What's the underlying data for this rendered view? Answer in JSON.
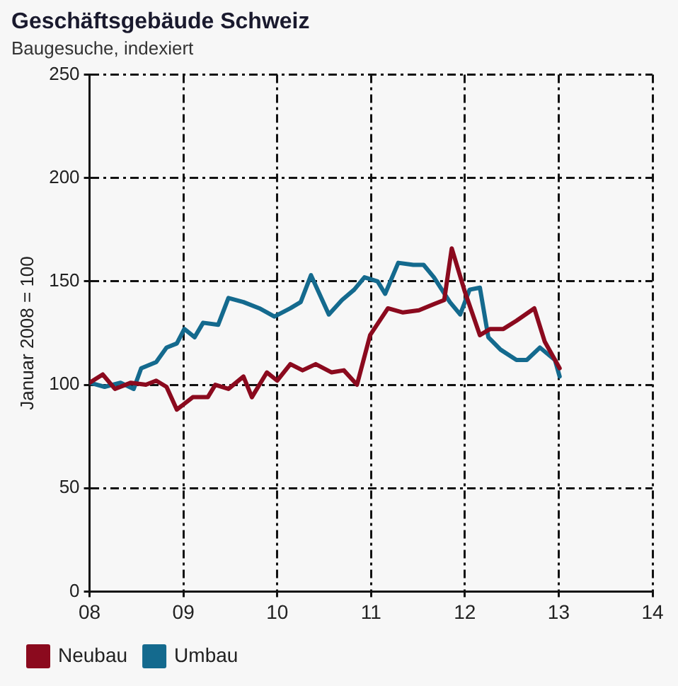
{
  "chart_data": {
    "type": "line",
    "title": "Geschäftsgebäude Schweiz",
    "subtitle": "Baugesuche, indexiert",
    "ylabel": "Januar 2008 = 100",
    "xlim": [
      2008,
      2014
    ],
    "xticks": [
      {
        "value": 2008,
        "label": "08"
      },
      {
        "value": 2009,
        "label": "09"
      },
      {
        "value": 2010,
        "label": "10"
      },
      {
        "value": 2011,
        "label": "11"
      },
      {
        "value": 2012,
        "label": "12"
      },
      {
        "value": 2013,
        "label": "13"
      },
      {
        "value": 2014,
        "label": "14"
      }
    ],
    "ylim": [
      0,
      250
    ],
    "yticks": [
      0,
      50,
      100,
      150,
      200,
      250
    ],
    "grid": true,
    "legend": "bottom left",
    "marker": "none",
    "line_style": "solid",
    "series": [
      {
        "name": "Neubau",
        "color": "#8b0a1e",
        "x": [
          2008.0,
          2008.14,
          2008.27,
          2008.44,
          2008.6,
          2008.71,
          2008.82,
          2008.93,
          2009.1,
          2009.26,
          2009.34,
          2009.48,
          2009.64,
          2009.73,
          2009.89,
          2010.0,
          2010.14,
          2010.27,
          2010.41,
          2010.58,
          2010.71,
          2010.85,
          2010.99,
          2011.18,
          2011.34,
          2011.51,
          2011.67,
          2011.78,
          2011.86,
          2012.0,
          2012.16,
          2012.27,
          2012.41,
          2012.55,
          2012.74,
          2012.85,
          2013.01
        ],
        "values": [
          101,
          105,
          98,
          101,
          100,
          102,
          99,
          88,
          94,
          94,
          100,
          98,
          104,
          94,
          106,
          102,
          110,
          107,
          110,
          106,
          107,
          100,
          124,
          137,
          135,
          136,
          139,
          141,
          166,
          145,
          124,
          127,
          127,
          131,
          137,
          121,
          108
        ]
      },
      {
        "name": "Umbau",
        "color": "#146a8e",
        "x": [
          2008.0,
          2008.16,
          2008.33,
          2008.47,
          2008.55,
          2008.71,
          2008.82,
          2008.93,
          2009.01,
          2009.12,
          2009.21,
          2009.37,
          2009.48,
          2009.64,
          2009.81,
          2009.97,
          2010.14,
          2010.25,
          2010.36,
          2010.55,
          2010.69,
          2010.82,
          2010.93,
          2011.07,
          2011.15,
          2011.29,
          2011.45,
          2011.56,
          2011.67,
          2011.84,
          2011.95,
          2012.05,
          2012.16,
          2012.25,
          2012.38,
          2012.55,
          2012.66,
          2012.8,
          2012.96,
          2013.01
        ],
        "values": [
          101,
          99,
          101,
          98,
          108,
          111,
          118,
          120,
          127,
          123,
          130,
          129,
          142,
          140,
          137,
          133,
          137,
          140,
          153,
          134,
          141,
          146,
          152,
          150,
          144,
          159,
          158,
          158,
          152,
          140,
          134,
          146,
          147,
          123,
          117,
          112,
          112,
          118,
          112,
          104
        ]
      }
    ]
  }
}
